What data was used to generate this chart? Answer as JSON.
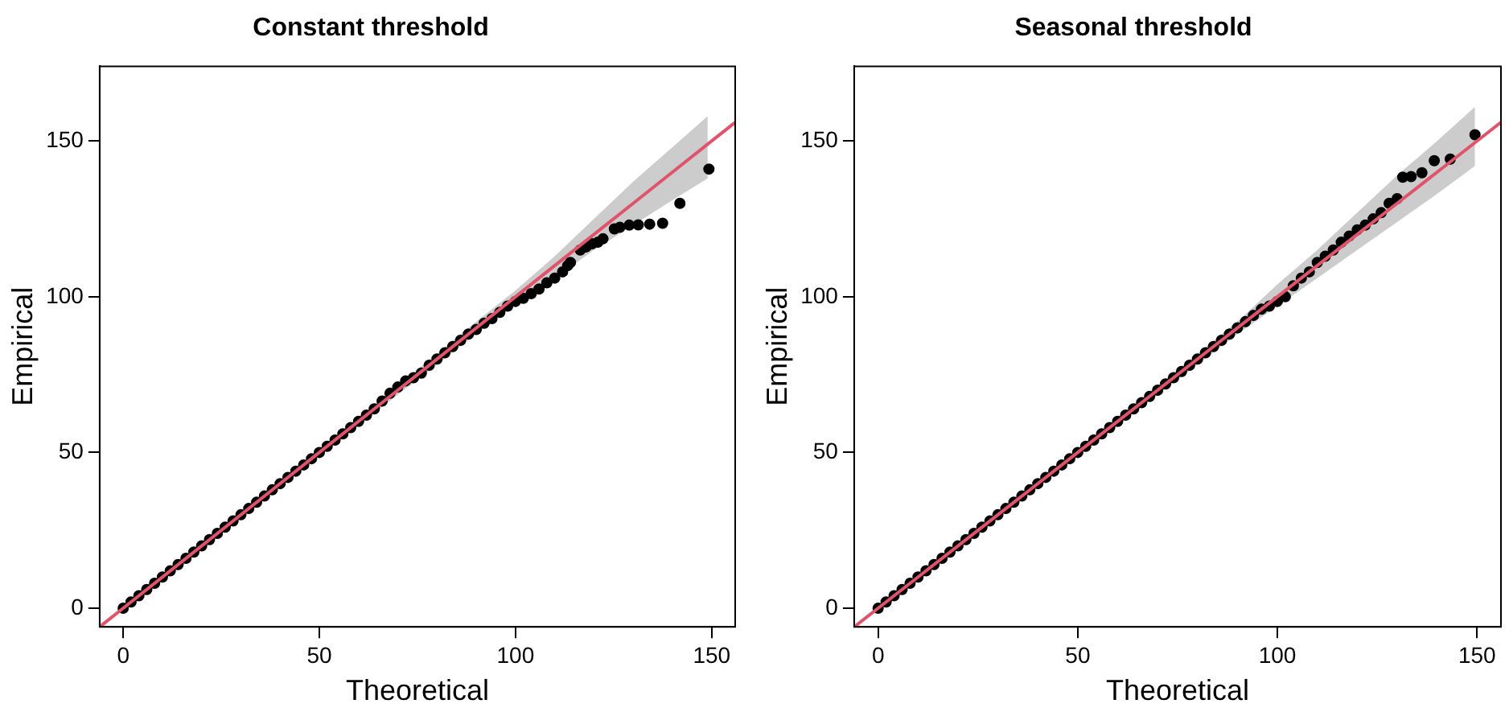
{
  "chart_data": [
    {
      "type": "scatter",
      "title": "Constant threshold",
      "xlabel": "Theoretical",
      "ylabel": "Empirical",
      "xlim": [
        -6,
        156
      ],
      "ylim": [
        -6,
        174
      ],
      "xticks": [
        0,
        50,
        100,
        150
      ],
      "yticks": [
        0,
        50,
        100,
        150
      ],
      "grid": false,
      "legend": false,
      "marker": "circle",
      "series": [
        {
          "color": "#000000",
          "x": [
            0,
            2,
            4,
            6,
            8,
            10,
            12,
            14,
            16,
            18,
            20,
            22,
            24,
            26,
            28,
            30,
            32,
            34,
            36,
            38,
            40,
            42,
            44,
            46,
            48,
            50,
            52,
            54,
            56,
            58,
            60,
            62,
            64,
            66,
            68,
            70,
            72,
            74,
            76,
            78,
            80,
            82,
            84,
            86,
            88,
            90,
            92,
            94,
            96,
            98,
            100,
            102,
            104,
            106,
            108,
            110,
            112,
            113.3,
            114,
            116.5,
            118,
            119.5,
            121,
            122.3,
            125.2,
            126.6,
            129,
            131.3,
            134.2,
            137.5,
            141.9,
            149.3
          ],
          "values": [
            0,
            2,
            4,
            6,
            8,
            10,
            12,
            14,
            16,
            18,
            20,
            22,
            24,
            26,
            28,
            30,
            32,
            34,
            36,
            38,
            40,
            42,
            44,
            46,
            48,
            50,
            52,
            54,
            56,
            58,
            60,
            62,
            64,
            66.5,
            69,
            71,
            73,
            74,
            75.5,
            78,
            80,
            82,
            84,
            86,
            88,
            89.5,
            91.5,
            93,
            95,
            97,
            98.5,
            99.5,
            101,
            102.5,
            104.5,
            106,
            108,
            110,
            111,
            115,
            116,
            117,
            117.5,
            118.6,
            121.8,
            122.3,
            123,
            123.1,
            123.3,
            123.6,
            130,
            141
          ]
        },
        {
          "type": "line",
          "marker": "none",
          "color": "#df536b",
          "x": [
            -6,
            0,
            50,
            90,
            100,
            110,
            120,
            130,
            140,
            149,
            156
          ],
          "values": [
            -6,
            0,
            50,
            90,
            100,
            110,
            120,
            130,
            140,
            149,
            156
          ],
          "lower": [
            null,
            -0.5,
            49,
            88,
            98,
            106,
            115,
            123,
            131,
            138,
            null
          ],
          "upper": [
            null,
            0.5,
            51,
            92,
            102,
            113,
            125,
            137,
            148,
            158,
            null
          ]
        }
      ]
    },
    {
      "type": "scatter",
      "title": "Seasonal threshold",
      "xlabel": "Theoretical",
      "ylabel": "Empirical",
      "xlim": [
        -6,
        156
      ],
      "ylim": [
        -6,
        174
      ],
      "xticks": [
        0,
        50,
        100,
        150
      ],
      "yticks": [
        0,
        50,
        100,
        150
      ],
      "grid": false,
      "legend": false,
      "marker": "circle",
      "series": [
        {
          "color": "#000000",
          "x": [
            0,
            2,
            4,
            6,
            8,
            10,
            12,
            14,
            16,
            18,
            20,
            22,
            24,
            26,
            28,
            30,
            32,
            34,
            36,
            38,
            40,
            42,
            44,
            46,
            48,
            50,
            52,
            54,
            56,
            58,
            60,
            62,
            64,
            66,
            68,
            70,
            72,
            74,
            76,
            78,
            80,
            82,
            84,
            86,
            88,
            90,
            92,
            94,
            96,
            98,
            100,
            102,
            104,
            106,
            108,
            110,
            112,
            114,
            116,
            118,
            120,
            122,
            124,
            126,
            128,
            130,
            131.4,
            133.5,
            136.2,
            139.3,
            143.3,
            149.5
          ],
          "values": [
            0,
            2,
            4,
            6,
            8,
            10,
            12,
            14,
            16,
            18,
            20,
            22,
            24,
            26,
            28,
            30,
            32,
            34,
            36,
            38,
            40,
            42,
            44,
            46,
            48,
            50,
            52,
            54,
            56,
            58,
            60,
            62,
            64,
            66,
            68,
            70,
            72,
            74,
            76,
            78,
            80,
            82,
            84,
            86,
            88,
            90,
            92,
            94,
            96,
            97,
            98.5,
            100,
            103.5,
            106,
            108,
            111,
            113,
            115,
            117.5,
            119.5,
            121.5,
            123,
            125,
            127,
            130,
            131.5,
            138.4,
            138.6,
            139.8,
            143.7,
            144.2,
            152
          ]
        },
        {
          "type": "line",
          "marker": "none",
          "color": "#df536b",
          "x": [
            -6,
            0,
            50,
            90,
            100,
            110,
            120,
            130,
            140,
            149.5,
            156
          ],
          "values": [
            -6,
            0,
            50,
            90,
            100,
            110,
            120,
            130,
            140,
            149.5,
            156
          ],
          "lower": [
            null,
            -0.5,
            49,
            88,
            97,
            106,
            115,
            124,
            133,
            142,
            null
          ],
          "upper": [
            null,
            0.5,
            51,
            92,
            104,
            115,
            127,
            139,
            150,
            161,
            null
          ]
        }
      ]
    }
  ]
}
